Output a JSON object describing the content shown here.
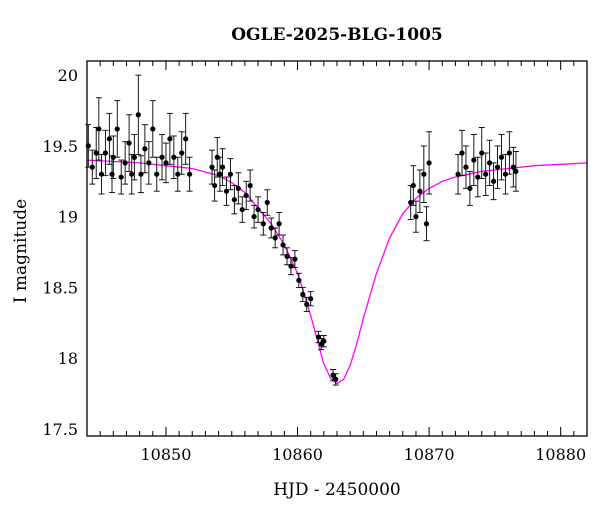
{
  "chart_data": {
    "type": "scatter",
    "title": "OGLE-2025-BLG-1005",
    "xlabel": "HJD - 2450000",
    "ylabel": "I magnitude",
    "xlim": [
      10844,
      10882
    ],
    "ylim": [
      20.1,
      17.45
    ],
    "y_inverted": true,
    "x_ticks": [
      "10850",
      "10860",
      "10870",
      "10880"
    ],
    "y_ticks": [
      "17.5",
      "18",
      "18.5",
      "19",
      "19.5",
      "20"
    ],
    "grid": false,
    "colors": {
      "data": "#000000",
      "model": "#ff00ff",
      "frame": "#000000"
    },
    "model": {
      "name": "",
      "peak_time": 10863.0,
      "peak_magnitude": 17.82,
      "baseline_magnitude": 19.4,
      "x": [
        10844.0,
        10846.0,
        10848.0,
        10850.0,
        10852.0,
        10854.0,
        10855.0,
        10856.0,
        10857.0,
        10858.0,
        10859.0,
        10860.0,
        10860.5,
        10861.0,
        10861.5,
        10862.0,
        10862.5,
        10863.0,
        10863.5,
        10864.0,
        10864.5,
        10865.0,
        10866.0,
        10867.0,
        10868.0,
        10869.0,
        10870.0,
        10871.0,
        10872.0,
        10874.0,
        10876.0,
        10878.0,
        10880.0,
        10882.0
      ],
      "y": [
        19.4,
        19.39,
        19.38,
        19.36,
        19.34,
        19.29,
        19.24,
        19.17,
        19.06,
        18.95,
        18.8,
        18.6,
        18.46,
        18.3,
        18.13,
        17.96,
        17.86,
        17.82,
        17.85,
        17.95,
        18.1,
        18.28,
        18.6,
        18.85,
        19.02,
        19.13,
        19.2,
        19.25,
        19.28,
        19.32,
        19.34,
        19.36,
        19.37,
        19.38
      ]
    },
    "series": [
      {
        "x": [
          10844.1,
          10844.4,
          10844.7,
          10844.9,
          10845.1,
          10845.4,
          10845.7,
          10845.9,
          10846.0,
          10846.3,
          10846.6,
          10846.9,
          10847.2,
          10847.4,
          10847.6,
          10847.9,
          10848.1,
          10848.4,
          10848.7,
          10849.0,
          10849.3,
          10849.7,
          10850.0,
          10850.3,
          10850.6,
          10850.9,
          10851.2,
          10851.5,
          10851.8
        ],
        "y": [
          19.5,
          19.35,
          19.45,
          19.62,
          19.3,
          19.45,
          19.55,
          19.3,
          19.42,
          19.62,
          19.28,
          19.38,
          19.52,
          19.3,
          19.42,
          19.72,
          19.3,
          19.48,
          19.38,
          19.62,
          19.3,
          19.42,
          19.38,
          19.55,
          19.42,
          19.3,
          19.45,
          19.55,
          19.3
        ],
        "err": [
          0.15,
          0.12,
          0.18,
          0.22,
          0.14,
          0.16,
          0.18,
          0.13,
          0.15,
          0.2,
          0.12,
          0.15,
          0.2,
          0.14,
          0.16,
          0.28,
          0.13,
          0.17,
          0.15,
          0.2,
          0.12,
          0.16,
          0.14,
          0.18,
          0.15,
          0.12,
          0.15,
          0.18,
          0.12
        ]
      },
      {
        "x": [
          10853.5,
          10853.7,
          10853.9,
          10854.1,
          10854.3,
          10854.6,
          10854.9,
          10855.2,
          10855.5,
          10855.8,
          10856.1,
          10856.4,
          10856.7,
          10857.0,
          10857.4,
          10857.7,
          10858.0,
          10858.3,
          10858.6,
          10858.9,
          10859.2,
          10859.5,
          10859.8,
          10860.1,
          10860.4,
          10860.7,
          10861.0,
          10861.6,
          10861.8,
          10862.0,
          10862.7,
          10862.9
        ],
        "y": [
          19.35,
          19.22,
          19.42,
          19.3,
          19.35,
          19.18,
          19.3,
          19.12,
          19.2,
          19.05,
          19.15,
          19.22,
          19.0,
          19.05,
          18.95,
          19.1,
          18.92,
          18.85,
          18.95,
          18.8,
          18.72,
          18.65,
          18.7,
          18.55,
          18.45,
          18.38,
          18.42,
          18.15,
          18.1,
          18.12,
          17.88,
          17.85
        ],
        "err": [
          0.12,
          0.11,
          0.14,
          0.12,
          0.13,
          0.1,
          0.11,
          0.1,
          0.11,
          0.09,
          0.1,
          0.11,
          0.08,
          0.09,
          0.08,
          0.09,
          0.07,
          0.07,
          0.08,
          0.07,
          0.06,
          0.06,
          0.06,
          0.05,
          0.05,
          0.05,
          0.05,
          0.04,
          0.04,
          0.04,
          0.04,
          0.04
        ]
      },
      {
        "x": [
          10868.6,
          10868.8,
          10869.0,
          10869.3,
          10869.6,
          10869.8,
          10870.0,
          10872.2,
          10872.5,
          10872.8,
          10873.1,
          10873.4,
          10873.7,
          10874.0,
          10874.3,
          10874.6,
          10874.9,
          10875.2,
          10875.5,
          10875.8,
          10876.1,
          10876.4,
          10876.6
        ],
        "y": [
          19.1,
          19.22,
          19.0,
          19.18,
          19.3,
          18.95,
          19.38,
          19.3,
          19.45,
          19.35,
          19.2,
          19.4,
          19.28,
          19.45,
          19.3,
          19.38,
          19.25,
          19.35,
          19.42,
          19.3,
          19.45,
          19.35,
          19.32
        ],
        "err": [
          0.12,
          0.14,
          0.11,
          0.15,
          0.2,
          0.12,
          0.22,
          0.14,
          0.16,
          0.15,
          0.12,
          0.18,
          0.14,
          0.18,
          0.15,
          0.16,
          0.13,
          0.15,
          0.16,
          0.14,
          0.15,
          0.14,
          0.14
        ]
      }
    ]
  }
}
